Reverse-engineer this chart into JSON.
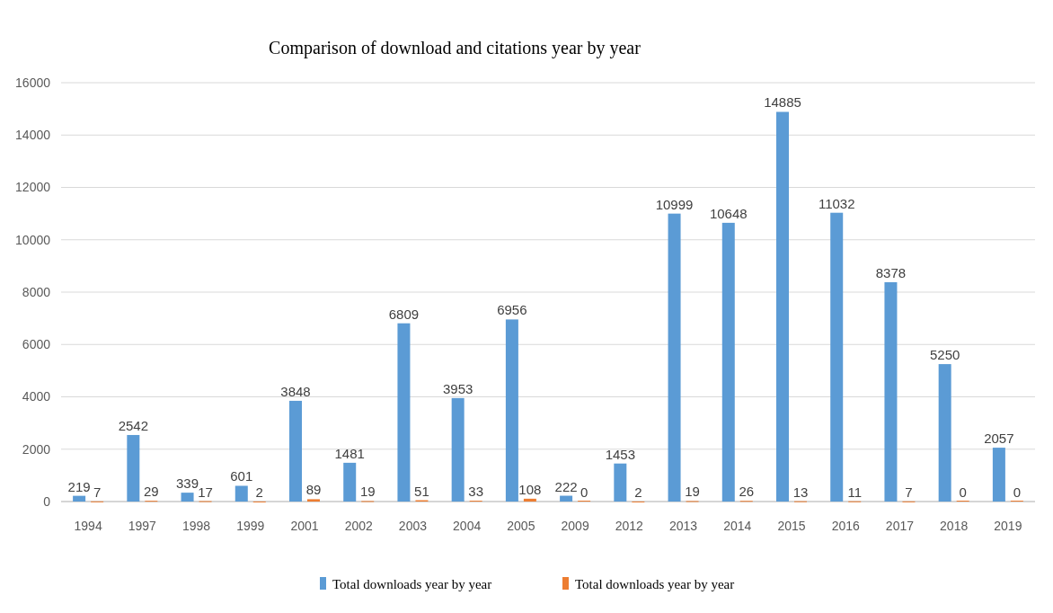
{
  "chart_data": {
    "type": "bar",
    "title": "Comparison of download and citations year by year",
    "categories": [
      "1994",
      "1997",
      "1998",
      "1999",
      "2001",
      "2002",
      "2003",
      "2004",
      "2005",
      "2009",
      "2012",
      "2013",
      "2014",
      "2015",
      "2016",
      "2017",
      "2018",
      "2019"
    ],
    "series": [
      {
        "name": "Total downloads year by year",
        "color": "#5b9bd5",
        "values": [
          219,
          2542,
          339,
          601,
          3848,
          1481,
          6809,
          3953,
          6956,
          222,
          1453,
          10999,
          10648,
          14885,
          11032,
          8378,
          5250,
          2057
        ]
      },
      {
        "name": "Total downloads year by year",
        "color": "#ed7d31",
        "values": [
          7,
          29,
          17,
          2,
          89,
          19,
          51,
          33,
          108,
          0,
          2,
          19,
          26,
          13,
          11,
          7,
          0,
          0
        ]
      }
    ],
    "ylim": [
      0,
      16000
    ],
    "yticks": [
      0,
      2000,
      4000,
      6000,
      8000,
      10000,
      12000,
      14000,
      16000
    ],
    "grid": "y",
    "legend": "bottom",
    "data_labels": true
  }
}
